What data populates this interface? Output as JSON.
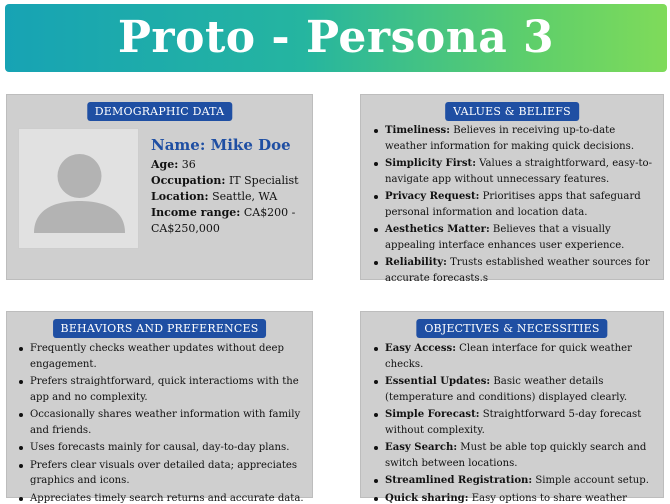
{
  "banner": {
    "title": "Proto - Persona 3"
  },
  "demographic": {
    "heading": "DEMOGRAPHIC DATA",
    "photo_icon": "user-avatar-placeholder-icon",
    "name_label": "Name:",
    "name_value": "Mike Doe",
    "age_label": "Age:",
    "age_value": "36",
    "occupation_label": "Occupation:",
    "occupation_value": "IT Specialist",
    "location_label": "Location:",
    "location_value": "Seattle, WA",
    "income_label": "Income range:",
    "income_value": "CA$200 - CA$250,000"
  },
  "values": {
    "heading": "VALUES & BELIEFS",
    "items": [
      {
        "title": "Timeliness:",
        "text": "Believes in receiving up-to-date weather information for making quick decisions."
      },
      {
        "title": "Simplicity First:",
        "text": "Values a straightforward, easy-to-navigate app without unnecessary features."
      },
      {
        "title": "Privacy Request:",
        "text": "Prioritises apps that safeguard personal information and location data."
      },
      {
        "title": "Aesthetics Matter:",
        "text": "Believes that a visually appealing interface enhances user experience."
      },
      {
        "title": "Reliability:",
        "text": "Trusts established weather sources for accurate forecasts.s"
      }
    ]
  },
  "behaviors": {
    "heading": "BEHAVIORS AND PREFERENCES",
    "items": [
      "Frequently checks weather updates without deep engagement.",
      "Prefers straightforward, quick interactioms with the app and no complexity.",
      "Occasionally shares weather information with family and friends.",
      "Uses forecasts mainly for causal, day-to-day plans.",
      "Prefers clear visuals over detailed data; appreciates graphics and icons.",
      "Appreciates timely search returns and accurate data."
    ]
  },
  "objectives": {
    "heading": "OBJECTIVES & NECESSITIES",
    "items": [
      {
        "title": "Easy Access:",
        "text": "Clean interface for quick weather checks."
      },
      {
        "title": "Essential Updates:",
        "text": "Basic weather details (temperature and conditions) displayed clearly."
      },
      {
        "title": "Simple Forecast:",
        "text": "Straightforward 5-day forecast without complexity."
      },
      {
        "title": "Easy Search:",
        "text": "Must be able top quickly search and switch between locations."
      },
      {
        "title": "Streamlined Registration:",
        "text": "Simple account setup."
      },
      {
        "title": "Quick sharing:",
        "text": "Easy options to share weather information via social media or messaging."
      }
    ]
  },
  "colors": {
    "accent_blue": "#1f4fa3",
    "panel_gray": "#cfcfcf",
    "banner_start": "#17a3b4",
    "banner_end": "#7fdb5a"
  }
}
